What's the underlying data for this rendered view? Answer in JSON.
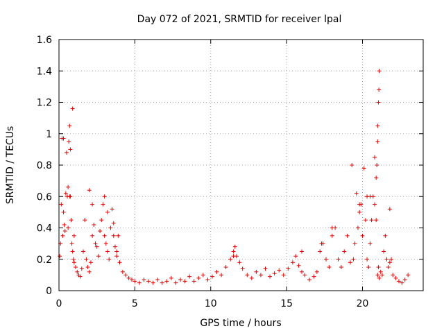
{
  "chart_data": {
    "type": "scatter",
    "title": "Day 072 of 2021, SRMTID for receiver lpal",
    "xlabel": "GPS time / hours",
    "ylabel": "SRMTID / TECUs",
    "xlim": [
      0,
      24
    ],
    "ylim": [
      0,
      1.6
    ],
    "grid": true,
    "marker": "+",
    "series_color": "#e00000",
    "x_ticks": [
      0,
      5,
      10,
      15,
      20
    ],
    "x_tick_labels": [
      "0",
      "5",
      "10",
      "15",
      "20"
    ],
    "y_ticks": [
      0,
      0.2,
      0.4,
      0.6,
      0.8,
      1.0,
      1.2,
      1.4,
      1.6
    ],
    "y_tick_labels": [
      "0",
      "0.2",
      "0.4",
      "0.6",
      "0.8",
      "1",
      "1.2",
      "1.4",
      "1.6"
    ],
    "series": [
      {
        "name": "SRMTID",
        "x": [
          0.05,
          0.1,
          0.15,
          0.2,
          0.25,
          0.3,
          0.35,
          0.4,
          0.45,
          0.5,
          0.55,
          0.6,
          0.65,
          0.7,
          0.75,
          0.8,
          0.85,
          0.9,
          0.95,
          1.0,
          1.1,
          1.2,
          1.3,
          1.4,
          1.5,
          1.6,
          1.7,
          1.8,
          1.9,
          2.0,
          2.1,
          2.2,
          2.3,
          2.4,
          2.5,
          2.6,
          2.7,
          2.8,
          2.9,
          3.0,
          3.1,
          3.2,
          3.3,
          3.4,
          3.5,
          3.6,
          3.7,
          3.8,
          3.9,
          4.0,
          4.2,
          4.4,
          4.6,
          4.8,
          5.0,
          5.3,
          5.6,
          5.9,
          6.2,
          6.5,
          6.8,
          7.1,
          7.4,
          7.7,
          8.0,
          8.3,
          8.6,
          8.9,
          9.2,
          9.5,
          9.8,
          10.1,
          10.4,
          10.7,
          11.0,
          11.3,
          11.5,
          11.7,
          11.9,
          12.1,
          12.4,
          12.7,
          13.0,
          13.3,
          13.6,
          13.9,
          14.2,
          14.5,
          14.8,
          15.1,
          15.4,
          15.6,
          15.8,
          16.0,
          16.2,
          16.5,
          16.8,
          17.0,
          17.2,
          17.4,
          17.6,
          17.8,
          18.0,
          18.2,
          18.4,
          18.6,
          18.8,
          19.0,
          19.2,
          19.4,
          19.5,
          19.6,
          19.7,
          19.8,
          19.9,
          20.0,
          20.1,
          20.2,
          20.3,
          20.4,
          20.5,
          20.6,
          20.7,
          20.8,
          20.9,
          20.95,
          21.0,
          21.05,
          21.1,
          21.2,
          21.3,
          21.4,
          21.5,
          21.6,
          21.7,
          21.8,
          21.9,
          22.0,
          22.2,
          22.4,
          22.6,
          22.8,
          23.0,
          0.3,
          0.6,
          0.7,
          0.75,
          0.9,
          1.0,
          2.0,
          2.2,
          3.0,
          3.2,
          3.6,
          3.8,
          11.5,
          11.6,
          16.0,
          17.3,
          18.0,
          19.3,
          19.8,
          20.3,
          20.5,
          20.9,
          21.0,
          21.05,
          21.08,
          21.1,
          21.0,
          20.8,
          21.8
        ],
        "y": [
          0.22,
          0.3,
          0.55,
          0.97,
          0.35,
          0.5,
          0.42,
          0.38,
          0.62,
          0.88,
          0.6,
          0.4,
          0.95,
          1.05,
          0.6,
          0.45,
          0.3,
          0.25,
          0.2,
          0.18,
          0.15,
          0.12,
          0.1,
          0.09,
          0.14,
          0.25,
          0.45,
          0.2,
          0.15,
          0.12,
          0.18,
          0.35,
          0.42,
          0.3,
          0.28,
          0.22,
          0.38,
          0.45,
          0.55,
          0.35,
          0.3,
          0.25,
          0.2,
          0.4,
          0.52,
          0.35,
          0.28,
          0.22,
          0.35,
          0.18,
          0.12,
          0.1,
          0.08,
          0.07,
          0.06,
          0.05,
          0.07,
          0.06,
          0.05,
          0.07,
          0.05,
          0.06,
          0.08,
          0.05,
          0.07,
          0.06,
          0.09,
          0.06,
          0.08,
          0.1,
          0.07,
          0.09,
          0.12,
          0.1,
          0.15,
          0.2,
          0.25,
          0.22,
          0.18,
          0.14,
          0.1,
          0.08,
          0.12,
          0.1,
          0.14,
          0.09,
          0.11,
          0.13,
          0.1,
          0.14,
          0.18,
          0.22,
          0.16,
          0.12,
          0.1,
          0.07,
          0.09,
          0.12,
          0.25,
          0.3,
          0.2,
          0.15,
          0.35,
          0.4,
          0.2,
          0.15,
          0.25,
          0.35,
          0.18,
          0.2,
          0.3,
          0.62,
          0.4,
          0.5,
          0.55,
          0.35,
          0.78,
          0.45,
          0.2,
          0.15,
          0.3,
          0.45,
          0.6,
          0.55,
          0.72,
          0.8,
          0.1,
          0.15,
          0.08,
          0.12,
          0.1,
          0.25,
          0.35,
          0.2,
          0.15,
          0.18,
          0.2,
          0.1,
          0.08,
          0.06,
          0.05,
          0.07,
          0.1,
          0.97,
          0.66,
          0.6,
          0.9,
          1.16,
          0.35,
          0.64,
          0.55,
          0.6,
          0.5,
          0.43,
          0.25,
          0.22,
          0.28,
          0.25,
          0.3,
          0.4,
          0.8,
          0.55,
          0.6,
          0.6,
          0.45,
          1.05,
          1.2,
          1.28,
          1.4,
          0.95,
          0.85,
          0.52
        ]
      }
    ]
  }
}
